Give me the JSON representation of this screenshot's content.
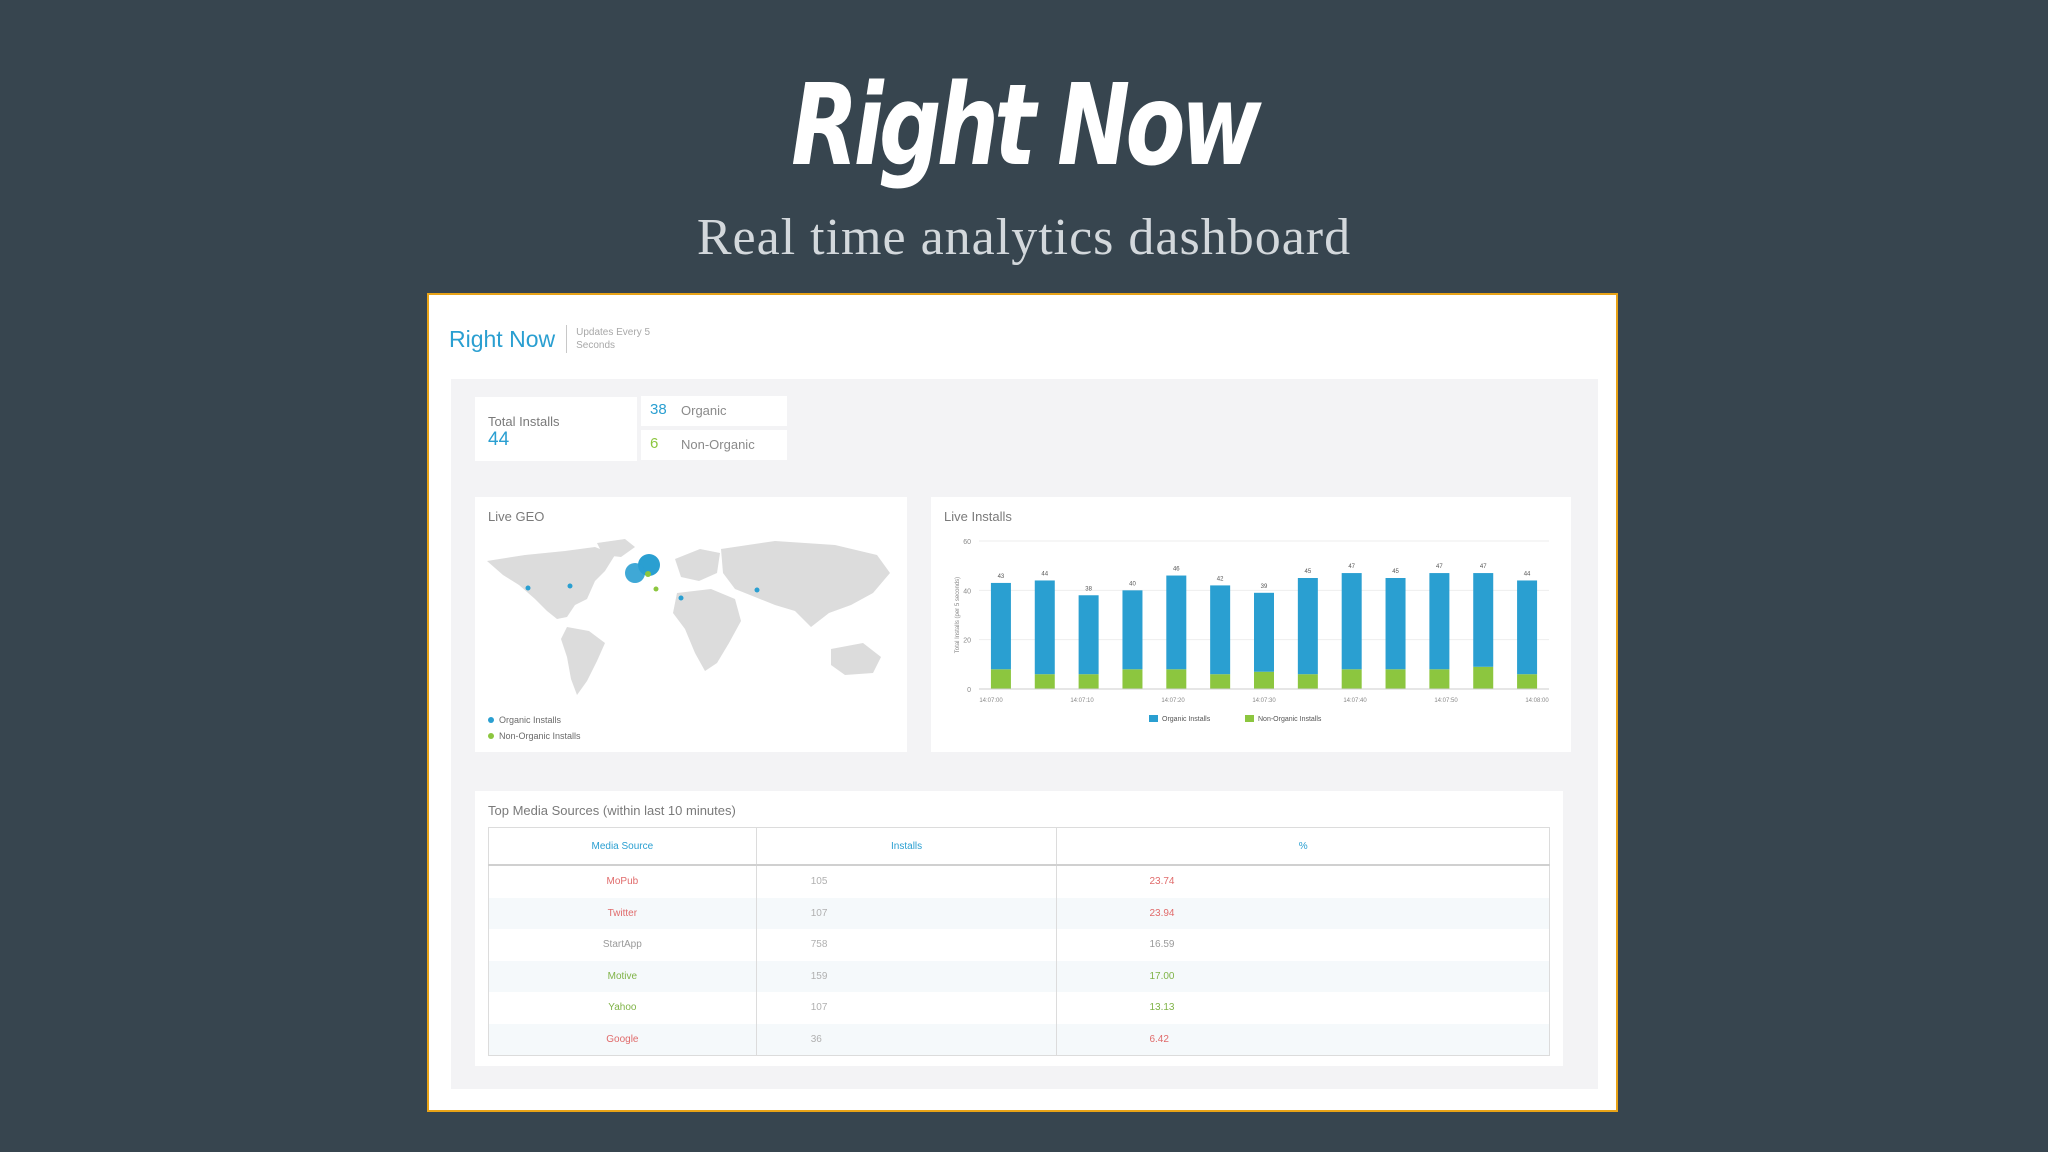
{
  "slide": {
    "title": "Right Now",
    "subtitle": "Real time analytics dashboard"
  },
  "dashboard": {
    "title": "Right Now",
    "update_note": "Updates Every 5 Seconds",
    "total_installs": {
      "label": "Total Installs",
      "value": "44"
    },
    "organic": {
      "value": "38",
      "label": "Organic",
      "color": "#2a9fd1"
    },
    "non_organic": {
      "value": "6",
      "label": "Non-Organic",
      "color": "#8cc63f"
    },
    "live_geo": {
      "title": "Live GEO",
      "legend": [
        {
          "label": "Organic Installs",
          "color": "#2a9fd1"
        },
        {
          "label": "Non-Organic Installs",
          "color": "#8cc63f"
        }
      ]
    },
    "media_sources": {
      "title": "Top Media Sources (within last 10 minutes)",
      "columns": [
        "Media Source",
        "Installs",
        "%"
      ],
      "rows": [
        {
          "source": "MoPub",
          "installs": "105",
          "pct": "23.74",
          "color": "#e06b6b"
        },
        {
          "source": "Twitter",
          "installs": "107",
          "pct": "23.94",
          "color": "#e06b6b"
        },
        {
          "source": "StartApp",
          "installs": "758",
          "pct": "16.59",
          "color": "#9a9a9a"
        },
        {
          "source": "Motive",
          "installs": "159",
          "pct": "17.00",
          "color": "#7fb347"
        },
        {
          "source": "Yahoo",
          "installs": "107",
          "pct": "13.13",
          "color": "#7fb347"
        },
        {
          "source": "Google",
          "installs": "36",
          "pct": "6.42",
          "color": "#e06b6b"
        }
      ]
    }
  },
  "chart_data": {
    "type": "bar",
    "title": "Live Installs",
    "ylabel": "Total Installs (per 5 seconds)",
    "ylim": [
      0,
      60
    ],
    "yticks": [
      0,
      20,
      40,
      60
    ],
    "x_tick_labels": [
      "14:07:00",
      "14:07:10",
      "14:07:20",
      "14:07:30",
      "14:07:40",
      "14:07:50",
      "14:08:00"
    ],
    "categories": [
      "1",
      "2",
      "3",
      "4",
      "5",
      "6",
      "7",
      "8",
      "9",
      "10",
      "11",
      "12",
      "13"
    ],
    "totals": [
      "43",
      "44",
      "38",
      "40",
      "46",
      "42",
      "39",
      "45",
      "47",
      "45",
      "47",
      "47",
      "44"
    ],
    "series": [
      {
        "name": "Organic Installs",
        "color": "#2a9fd1",
        "values": [
          35,
          38,
          32,
          32,
          38,
          36,
          32,
          39,
          39,
          37,
          39,
          38,
          38
        ]
      },
      {
        "name": "Non-Organic Installs",
        "color": "#8cc63f",
        "values": [
          8,
          6,
          6,
          8,
          8,
          6,
          7,
          6,
          8,
          8,
          8,
          9,
          6
        ]
      }
    ],
    "legend_position": "bottom"
  }
}
